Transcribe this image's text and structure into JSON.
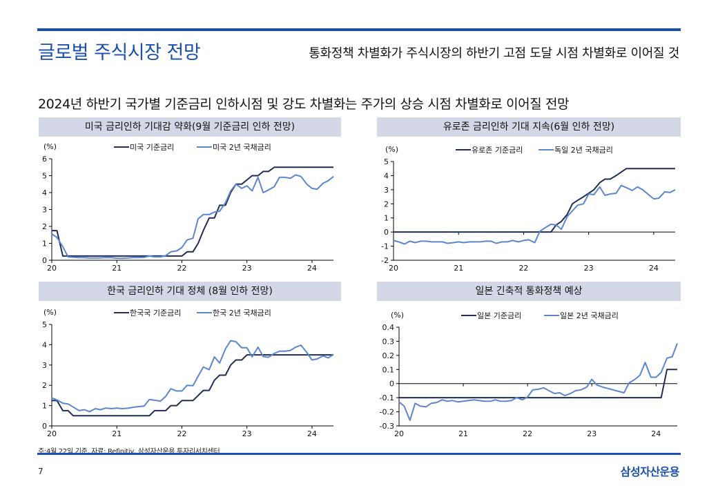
{
  "header": {
    "title": "글로벌 주식시장 전망",
    "subtitle": "통화정책 차별화가 주식시장의 하반기 고점 도달 시점 차별화로 이어질 것"
  },
  "section_heading": "2024년 하반기 국가별 기준금리 인하시점 및 강도 차별화는 주가의 상승 시점 차별화로 이어질 전망",
  "footer": {
    "note": "주:4월 22일 기준, 자료: Refinitiv, 삼성자산운용 투자리서치센터",
    "page_number": "7",
    "brand": "삼성자산운용"
  },
  "colors": {
    "accent": "#1a4fb0",
    "policy_rate": "#1f2d54",
    "bond_yield": "#5b86cf",
    "panel_title_bg": "#d3d7e6"
  },
  "chart_data": [
    {
      "type": "line",
      "title": "미국 금리인하 기대감 약화(9월 기준금리 인하 전망)",
      "ylabel": "(%)",
      "xlabel": "",
      "xlim": [
        20,
        24.33
      ],
      "ylim": [
        0,
        6
      ],
      "yticks": [
        "0",
        "1",
        "2",
        "3",
        "4",
        "5",
        "6"
      ],
      "ytick_values": [
        0,
        1,
        2,
        3,
        4,
        5,
        6
      ],
      "xticks": [
        "20",
        "21",
        "22",
        "23",
        "24"
      ],
      "xtick_values": [
        20,
        21,
        22,
        23,
        24
      ],
      "zero_line": false,
      "legend": "top-center",
      "series": [
        {
          "name": "미국 기준금리",
          "role": "policy_rate",
          "x": [
            20,
            20.08,
            20.17,
            20.25,
            21,
            22,
            22.08,
            22.17,
            22.25,
            22.33,
            22.42,
            22.5,
            22.58,
            22.67,
            22.75,
            22.83,
            22.92,
            23,
            23.08,
            23.17,
            23.25,
            23.33,
            23.42,
            23.5,
            23.58,
            24,
            24.33
          ],
          "y": [
            1.75,
            1.75,
            0.25,
            0.25,
            0.25,
            0.25,
            0.5,
            0.5,
            1.0,
            1.75,
            2.5,
            2.5,
            3.25,
            3.25,
            4.0,
            4.5,
            4.5,
            4.75,
            5.0,
            5.0,
            5.25,
            5.25,
            5.5,
            5.5,
            5.5,
            5.5,
            5.5
          ]
        },
        {
          "name": "미국 2년 국채금리",
          "role": "bond_yield",
          "x": [
            20,
            20.08,
            20.17,
            20.25,
            20.33,
            20.42,
            20.5,
            20.58,
            20.67,
            20.75,
            20.83,
            20.92,
            21,
            21.08,
            21.17,
            21.25,
            21.33,
            21.42,
            21.5,
            21.58,
            21.67,
            21.75,
            21.83,
            21.92,
            22,
            22.08,
            22.17,
            22.25,
            22.33,
            22.42,
            22.5,
            22.58,
            22.67,
            22.75,
            22.83,
            22.92,
            23,
            23.08,
            23.17,
            23.25,
            23.33,
            23.42,
            23.5,
            23.58,
            23.67,
            23.75,
            23.83,
            23.92,
            24,
            24.08,
            24.17,
            24.25,
            24.33
          ],
          "y": [
            1.55,
            1.35,
            0.8,
            0.2,
            0.18,
            0.15,
            0.15,
            0.13,
            0.13,
            0.14,
            0.16,
            0.15,
            0.12,
            0.11,
            0.13,
            0.16,
            0.16,
            0.17,
            0.25,
            0.2,
            0.2,
            0.27,
            0.5,
            0.55,
            0.75,
            1.2,
            1.3,
            2.45,
            2.7,
            2.7,
            2.85,
            2.9,
            3.4,
            4.1,
            4.5,
            4.25,
            4.4,
            4.1,
            4.9,
            4.0,
            4.15,
            4.35,
            4.9,
            4.9,
            4.85,
            5.05,
            4.95,
            4.5,
            4.25,
            4.2,
            4.55,
            4.7,
            4.95
          ]
        }
      ]
    },
    {
      "type": "line",
      "title": "유로존 금리인하 기대 지속(6월 인하 전망)",
      "ylabel": "(%)",
      "xlabel": "",
      "xlim": [
        20,
        24.33
      ],
      "ylim": [
        -2,
        5
      ],
      "yticks": [
        "-2",
        "-1",
        "0",
        "1",
        "2",
        "3",
        "4",
        "5"
      ],
      "ytick_values": [
        -2,
        -1,
        0,
        1,
        2,
        3,
        4,
        5
      ],
      "xticks": [
        "20",
        "21",
        "22",
        "23",
        "24"
      ],
      "xtick_values": [
        20,
        21,
        22,
        23,
        24
      ],
      "zero_line": true,
      "legend": "top-center",
      "series": [
        {
          "name": "유로존 기준금리",
          "role": "policy_rate",
          "x": [
            20,
            22.42,
            22.5,
            22.58,
            22.67,
            22.75,
            22.83,
            22.92,
            23,
            23.08,
            23.17,
            23.25,
            23.33,
            23.42,
            23.5,
            23.58,
            23.67,
            24,
            24.33
          ],
          "y": [
            0,
            0,
            0.5,
            0.75,
            1.25,
            2.0,
            2.25,
            2.5,
            2.75,
            3.0,
            3.5,
            3.75,
            3.75,
            4.0,
            4.25,
            4.5,
            4.5,
            4.5,
            4.5
          ]
        },
        {
          "name": "독일 2년 국채금리",
          "role": "bond_yield",
          "x": [
            20,
            20.08,
            20.17,
            20.25,
            20.33,
            20.42,
            20.5,
            20.58,
            20.67,
            20.75,
            20.83,
            20.92,
            21,
            21.08,
            21.17,
            21.25,
            21.33,
            21.42,
            21.5,
            21.58,
            21.67,
            21.75,
            21.83,
            21.92,
            22,
            22.08,
            22.17,
            22.25,
            22.33,
            22.42,
            22.5,
            22.58,
            22.67,
            22.75,
            22.83,
            22.92,
            23,
            23.08,
            23.17,
            23.25,
            23.33,
            23.42,
            23.5,
            23.58,
            23.67,
            23.75,
            23.83,
            23.92,
            24,
            24.08,
            24.17,
            24.25,
            24.33
          ],
          "y": [
            -0.6,
            -0.7,
            -0.85,
            -0.65,
            -0.75,
            -0.65,
            -0.65,
            -0.7,
            -0.7,
            -0.7,
            -0.8,
            -0.75,
            -0.7,
            -0.75,
            -0.7,
            -0.7,
            -0.7,
            -0.65,
            -0.65,
            -0.8,
            -0.7,
            -0.7,
            -0.6,
            -0.7,
            -0.6,
            -0.55,
            -0.75,
            0.05,
            0.3,
            0.55,
            0.5,
            0.2,
            1.1,
            1.5,
            1.9,
            2.0,
            2.7,
            2.65,
            3.2,
            2.6,
            2.7,
            2.75,
            3.3,
            3.15,
            2.95,
            3.2,
            3.0,
            2.65,
            2.35,
            2.4,
            2.85,
            2.8,
            3.0
          ]
        }
      ]
    },
    {
      "type": "line",
      "title": "한국 금리인하 기대 정체 (8월 인하 전망)",
      "ylabel": "(%)",
      "xlabel": "",
      "xlim": [
        20,
        24.33
      ],
      "ylim": [
        0,
        5
      ],
      "yticks": [
        "0",
        "1",
        "2",
        "3",
        "4",
        "5"
      ],
      "ytick_values": [
        0,
        1,
        2,
        3,
        4,
        5
      ],
      "xticks": [
        "20",
        "21",
        "22",
        "23",
        "24"
      ],
      "xtick_values": [
        20,
        21,
        22,
        23,
        24
      ],
      "zero_line": false,
      "legend": "top-center",
      "series": [
        {
          "name": "한국국 기준금리",
          "role": "policy_rate",
          "x": [
            20,
            20.08,
            20.17,
            20.25,
            20.33,
            20.42,
            21.5,
            21.58,
            21.67,
            21.75,
            21.83,
            21.92,
            22,
            22.08,
            22.17,
            22.25,
            22.33,
            22.42,
            22.5,
            22.58,
            22.67,
            22.75,
            22.83,
            22.92,
            23,
            23.08,
            24,
            24.33
          ],
          "y": [
            1.25,
            1.25,
            0.75,
            0.75,
            0.5,
            0.5,
            0.5,
            0.75,
            0.75,
            0.75,
            1.0,
            1.0,
            1.25,
            1.25,
            1.25,
            1.5,
            1.75,
            1.75,
            2.25,
            2.5,
            2.5,
            3.0,
            3.25,
            3.25,
            3.5,
            3.5,
            3.5,
            3.5
          ]
        },
        {
          "name": "한국 2년 국채금리",
          "role": "bond_yield",
          "x": [
            20,
            20.08,
            20.17,
            20.25,
            20.33,
            20.42,
            20.5,
            20.58,
            20.67,
            20.75,
            20.83,
            20.92,
            21,
            21.08,
            21.17,
            21.25,
            21.33,
            21.42,
            21.5,
            21.58,
            21.67,
            21.75,
            21.83,
            21.92,
            22,
            22.08,
            22.17,
            22.25,
            22.33,
            22.42,
            22.5,
            22.58,
            22.67,
            22.75,
            22.83,
            22.92,
            23,
            23.08,
            23.17,
            23.25,
            23.33,
            23.42,
            23.5,
            23.58,
            23.67,
            23.75,
            23.83,
            23.92,
            24,
            24.08,
            24.17,
            24.25,
            24.33
          ],
          "y": [
            1.38,
            1.28,
            1.12,
            1.08,
            0.93,
            0.75,
            0.8,
            0.7,
            0.85,
            0.8,
            0.88,
            0.85,
            0.88,
            0.85,
            0.87,
            0.92,
            0.95,
            0.98,
            1.3,
            1.27,
            1.22,
            1.45,
            1.83,
            1.72,
            1.72,
            2.0,
            1.98,
            2.45,
            2.9,
            2.77,
            3.4,
            3.1,
            3.8,
            4.2,
            4.15,
            3.85,
            3.85,
            3.4,
            3.88,
            3.42,
            3.38,
            3.57,
            3.68,
            3.68,
            3.72,
            3.88,
            3.98,
            3.62,
            3.25,
            3.3,
            3.45,
            3.35,
            3.52
          ]
        }
      ]
    },
    {
      "type": "line",
      "title": "일본 긴축적 통화정책 예상",
      "ylabel": "(%)",
      "xlabel": "",
      "xlim": [
        20,
        24.33
      ],
      "ylim": [
        -0.3,
        0.4
      ],
      "yticks": [
        "-0.3",
        "-0.2",
        "-0.1",
        "0",
        "0.1",
        "0.2",
        "0.3",
        "0.4"
      ],
      "ytick_values": [
        -0.3,
        -0.2,
        -0.1,
        0,
        0.1,
        0.2,
        0.3,
        0.4
      ],
      "xticks": [
        "20",
        "21",
        "22",
        "23",
        "24"
      ],
      "xtick_values": [
        20,
        21,
        22,
        23,
        24
      ],
      "zero_line": true,
      "legend": "top-center",
      "series": [
        {
          "name": "일본 기준금리",
          "role": "policy_rate",
          "x": [
            20,
            24.08,
            24.17,
            24.33
          ],
          "y": [
            -0.1,
            -0.1,
            0.1,
            0.1
          ]
        },
        {
          "name": "일본 2년 국채금리",
          "role": "bond_yield",
          "x": [
            20,
            20.08,
            20.17,
            20.25,
            20.33,
            20.42,
            20.5,
            20.58,
            20.67,
            20.75,
            20.83,
            20.92,
            21,
            21.08,
            21.17,
            21.25,
            21.33,
            21.42,
            21.5,
            21.58,
            21.67,
            21.75,
            21.83,
            21.92,
            22,
            22.08,
            22.17,
            22.25,
            22.33,
            22.42,
            22.5,
            22.58,
            22.67,
            22.75,
            22.83,
            22.92,
            23,
            23.08,
            23.17,
            23.5,
            23.58,
            23.67,
            23.75,
            23.83,
            23.92,
            24,
            24.08,
            24.17,
            24.25,
            24.33
          ],
          "y": [
            -0.13,
            -0.16,
            -0.26,
            -0.14,
            -0.16,
            -0.165,
            -0.14,
            -0.135,
            -0.115,
            -0.125,
            -0.12,
            -0.13,
            -0.125,
            -0.12,
            -0.115,
            -0.12,
            -0.125,
            -0.125,
            -0.115,
            -0.125,
            -0.125,
            -0.12,
            -0.1,
            -0.115,
            -0.095,
            -0.045,
            -0.04,
            -0.03,
            -0.05,
            -0.07,
            -0.065,
            -0.085,
            -0.07,
            -0.05,
            -0.045,
            -0.025,
            0.03,
            -0.01,
            -0.025,
            -0.065,
            0.005,
            0.03,
            0.06,
            0.15,
            0.045,
            0.045,
            0.08,
            0.18,
            0.19,
            0.285
          ]
        }
      ]
    }
  ]
}
